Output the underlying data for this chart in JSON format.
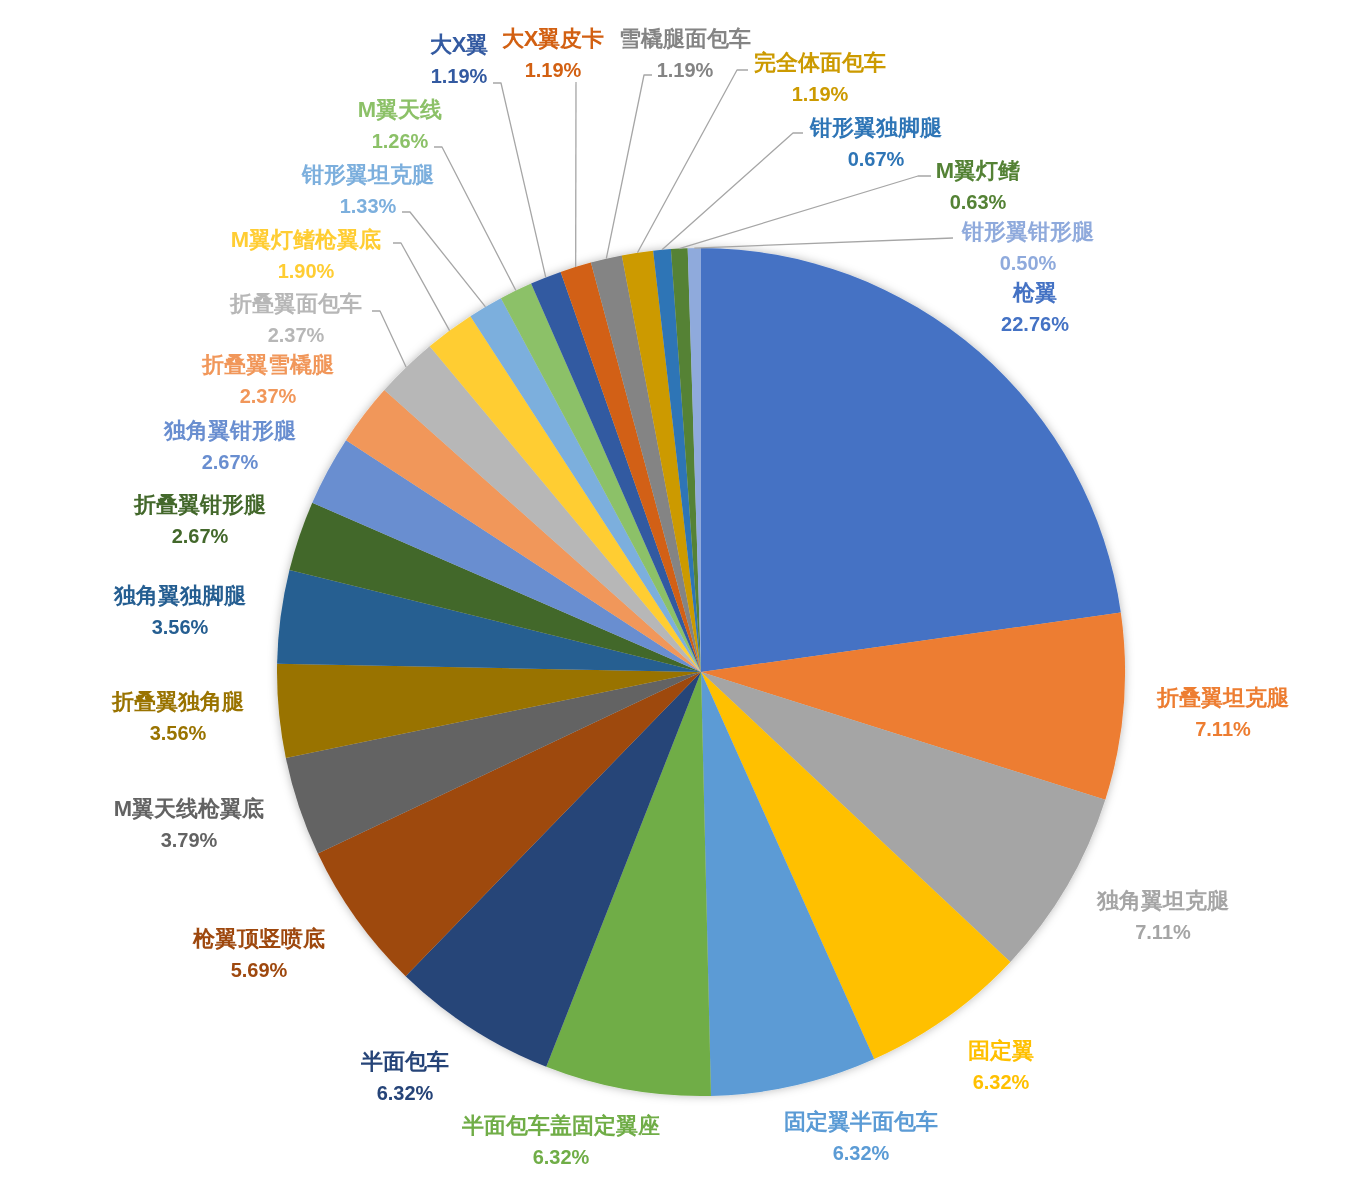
{
  "chart_data": {
    "type": "pie",
    "categories": [
      "枪翼",
      "折叠翼坦克腿",
      "独角翼坦克腿",
      "固定翼",
      "固定翼半面包车",
      "半面包车盖固定翼座",
      "半面包车",
      "枪翼顶竖喷底",
      "M翼天线枪翼底",
      "折叠翼独角腿",
      "独角翼独脚腿",
      "折叠翼钳形腿",
      "独角翼钳形腿",
      "折叠翼雪橇腿",
      "折叠翼面包车",
      "M翼灯鳍枪翼底",
      "钳形翼坦克腿",
      "M翼天线",
      "大X翼",
      "大X翼皮卡",
      "雪橇腿面包车",
      "完全体面包车",
      "钳形翼独脚腿",
      "M翼灯鳍",
      "钳形翼钳形腿"
    ],
    "values": [
      22.76,
      7.11,
      7.11,
      6.32,
      6.32,
      6.32,
      6.32,
      5.69,
      3.79,
      3.56,
      3.56,
      2.67,
      2.67,
      2.37,
      2.37,
      1.9,
      1.33,
      1.26,
      1.19,
      1.19,
      1.19,
      1.19,
      0.67,
      0.63,
      0.5
    ],
    "value_labels": [
      "22.76%",
      "7.11%",
      "7.11%",
      "6.32%",
      "6.32%",
      "6.32%",
      "6.32%",
      "5.69%",
      "3.79%",
      "3.56%",
      "3.56%",
      "2.67%",
      "2.67%",
      "2.37%",
      "2.37%",
      "1.90%",
      "1.33%",
      "1.26%",
      "1.19%",
      "1.19%",
      "1.19%",
      "1.19%",
      "0.67%",
      "0.63%",
      "0.50%"
    ],
    "colors": [
      "#4472c4",
      "#ed7d31",
      "#a5a5a5",
      "#ffc000",
      "#5b9bd5",
      "#70ad47",
      "#264478",
      "#9e480e",
      "#636363",
      "#997300",
      "#255e91",
      "#43682b",
      "#698ed0",
      "#f1975a",
      "#b7b7b7",
      "#ffcd33",
      "#7cafdd",
      "#8cc168",
      "#335aa1",
      "#d26012",
      "#848484",
      "#cc9a00",
      "#2e75b6",
      "#548235",
      "#8faadc"
    ]
  }
}
